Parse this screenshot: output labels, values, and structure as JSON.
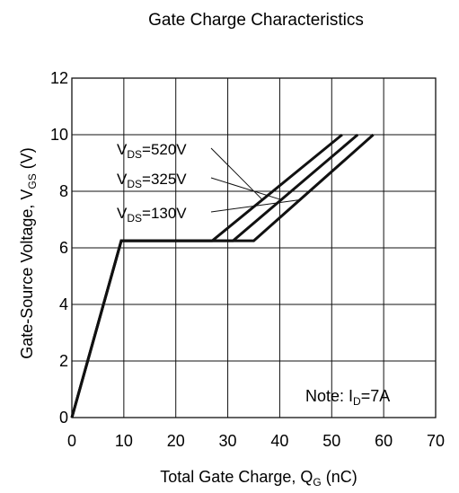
{
  "chart_data": {
    "type": "line",
    "title": "Gate Charge Characteristics",
    "xlabel": {
      "main": "Total Gate Charge, Q",
      "sub": "G",
      "unit": " (nC)"
    },
    "ylabel": {
      "main": "Gate-Source Voltage, V",
      "sub": "GS",
      "unit": " (V)"
    },
    "xlim": [
      0,
      70
    ],
    "ylim": [
      0,
      12
    ],
    "xticks": [
      0,
      10,
      20,
      30,
      40,
      50,
      60,
      70
    ],
    "yticks": [
      0,
      2,
      4,
      6,
      8,
      10,
      12
    ],
    "grid": true,
    "note": {
      "prefix": "Note: I",
      "sub": "D",
      "suffix": "=7A"
    },
    "series": [
      {
        "name": {
          "main": "V",
          "sub": "DS",
          "value": "=520V"
        },
        "x": [
          0,
          9.5,
          27,
          52
        ],
        "y": [
          0,
          6.25,
          6.25,
          10
        ]
      },
      {
        "name": {
          "main": "V",
          "sub": "DS",
          "value": "=325V"
        },
        "x": [
          0,
          9.5,
          31,
          55
        ],
        "y": [
          0,
          6.25,
          6.25,
          10
        ]
      },
      {
        "name": {
          "main": "V",
          "sub": "DS",
          "value": "=130V"
        },
        "x": [
          0,
          9.5,
          35,
          58
        ],
        "y": [
          0,
          6.25,
          6.25,
          10
        ]
      }
    ],
    "colors": {
      "line": "#111111",
      "grid": "#111111",
      "text": "#1a1a1a"
    }
  }
}
